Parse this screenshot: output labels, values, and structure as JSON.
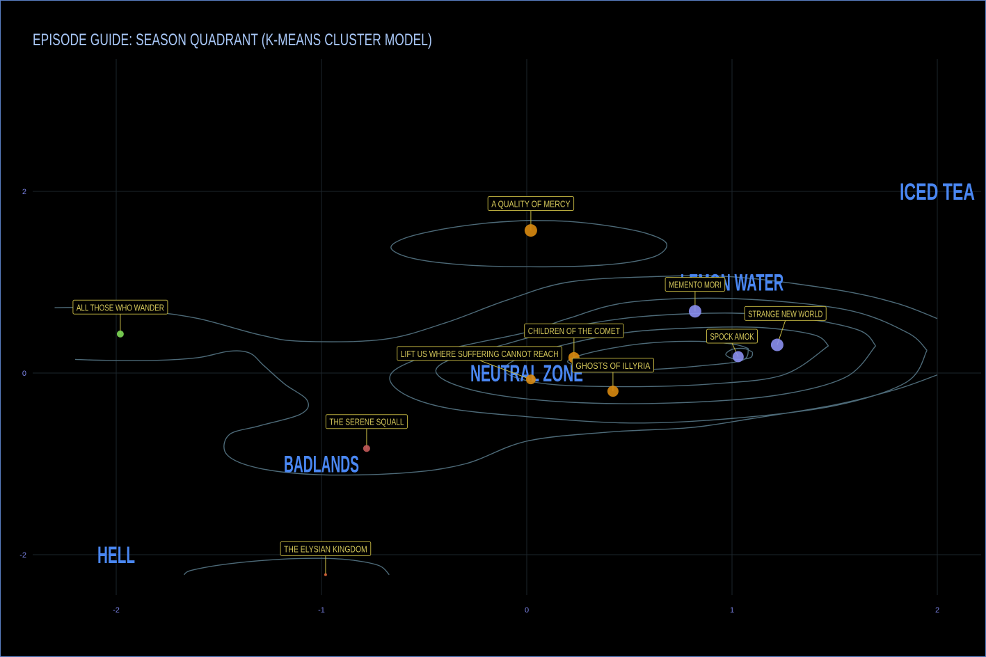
{
  "chart_data": {
    "type": "scatter",
    "title": "EPISODE GUIDE: SEASON QUADRANT (K-MEANS CLUSTER MODEL)",
    "xlabel": "",
    "ylabel": "",
    "xlim": [
      -2.3,
      2.2
    ],
    "ylim": [
      -2.6,
      3.5
    ],
    "x_ticks": [
      -2,
      -1,
      0,
      1,
      2
    ],
    "y_ticks": [
      -2,
      0,
      2
    ],
    "grid": true,
    "zones": [
      {
        "label": "ICED TEA",
        "x": 2.0,
        "y": 2.0
      },
      {
        "label": "LEMON WATER",
        "x": 1.0,
        "y": 1.0
      },
      {
        "label": "NEUTRAL ZONE",
        "x": 0.0,
        "y": 0.0
      },
      {
        "label": "BADLANDS",
        "x": -1.0,
        "y": -1.0
      },
      {
        "label": "HELL",
        "x": -2.0,
        "y": -2.0
      }
    ],
    "points": [
      {
        "label": "A QUALITY OF MERCY",
        "x": 0.02,
        "y": 1.57,
        "color": "#d98a10",
        "size": 9,
        "label_dx": 0.0,
        "label_dy": 0.25
      },
      {
        "label": "ALL THOSE WHO WANDER",
        "x": -1.98,
        "y": 0.43,
        "color": "#7ed957",
        "size": 5,
        "label_dx": 0.0,
        "label_dy": 0.25
      },
      {
        "label": "MEMENTO MORI",
        "x": 0.82,
        "y": 0.68,
        "color": "#8b8ff0",
        "size": 9,
        "label_dx": 0.0,
        "label_dy": 0.25
      },
      {
        "label": "STRANGE NEW WORLD",
        "x": 1.22,
        "y": 0.31,
        "color": "#8b8ff0",
        "size": 9,
        "label_dx": 0.04,
        "label_dy": 0.3
      },
      {
        "label": "SPOCK AMOK",
        "x": 1.03,
        "y": 0.18,
        "color": "#8b8ff0",
        "size": 8,
        "label_dx": -0.03,
        "label_dy": 0.18
      },
      {
        "label": "CHILDREN OF THE COMET",
        "x": 0.23,
        "y": 0.17,
        "color": "#d98a10",
        "size": 8,
        "label_dx": 0.0,
        "label_dy": 0.25
      },
      {
        "label": "LIFT US WHERE SUFFERING CANNOT REACH",
        "x": 0.02,
        "y": -0.07,
        "color": "#d98a10",
        "size": 7,
        "label_dx": -0.25,
        "label_dy": 0.24
      },
      {
        "label": "GHOSTS OF ILLYRIA",
        "x": 0.42,
        "y": -0.2,
        "color": "#d98a10",
        "size": 8,
        "label_dx": 0.0,
        "label_dy": 0.24
      },
      {
        "label": "THE SERENE SQUALL",
        "x": -0.78,
        "y": -0.83,
        "color": "#c45a5a",
        "size": 5,
        "label_dx": 0.0,
        "label_dy": 0.25
      },
      {
        "label": "THE ELYSIAN KINGDOM",
        "x": -0.98,
        "y": -2.22,
        "color": "#d9643a",
        "size": 2,
        "label_dx": 0.0,
        "label_dy": 0.24
      }
    ],
    "contours": [
      [
        [
          0.0,
          1.68
        ],
        [
          0.2,
          1.67
        ],
        [
          0.4,
          1.62
        ],
        [
          0.58,
          1.54
        ],
        [
          0.68,
          1.43
        ],
        [
          0.64,
          1.3
        ],
        [
          0.5,
          1.22
        ],
        [
          0.3,
          1.18
        ],
        [
          0.0,
          1.17
        ],
        [
          -0.3,
          1.19
        ],
        [
          -0.55,
          1.26
        ],
        [
          -0.66,
          1.37
        ],
        [
          -0.6,
          1.48
        ],
        [
          -0.42,
          1.58
        ],
        [
          -0.2,
          1.65
        ],
        [
          0.0,
          1.68
        ]
      ],
      [
        [
          -0.67,
          -2.22
        ],
        [
          -0.72,
          -2.12
        ],
        [
          -0.85,
          -2.06
        ],
        [
          -1.0,
          -2.04
        ],
        [
          -1.2,
          -2.05
        ],
        [
          -1.45,
          -2.1
        ],
        [
          -1.63,
          -2.17
        ],
        [
          -1.67,
          -2.22
        ]
      ],
      [
        [
          2.0,
          0.6
        ],
        [
          1.8,
          0.77
        ],
        [
          1.5,
          0.92
        ],
        [
          1.0,
          1.06
        ],
        [
          0.6,
          1.06
        ],
        [
          0.2,
          1.0
        ],
        [
          -0.1,
          0.8
        ],
        [
          -0.4,
          0.55
        ],
        [
          -0.7,
          0.37
        ],
        [
          -1.1,
          0.35
        ],
        [
          -1.3,
          0.42
        ],
        [
          -1.6,
          0.6
        ],
        [
          -1.85,
          0.68
        ],
        [
          -2.1,
          0.72
        ],
        [
          -2.3,
          0.72
        ]
      ],
      [
        [
          -2.2,
          0.15
        ],
        [
          -2.05,
          0.14
        ],
        [
          -1.8,
          0.14
        ],
        [
          -1.6,
          0.17
        ],
        [
          -1.45,
          0.24
        ],
        [
          -1.35,
          0.22
        ],
        [
          -1.28,
          0.08
        ],
        [
          -1.18,
          -0.12
        ],
        [
          -1.07,
          -0.3
        ],
        [
          -1.1,
          -0.45
        ],
        [
          -1.3,
          -0.58
        ],
        [
          -1.45,
          -0.68
        ],
        [
          -1.46,
          -0.9
        ],
        [
          -1.3,
          -1.05
        ],
        [
          -1.0,
          -1.12
        ],
        [
          -0.6,
          -1.1
        ],
        [
          -0.3,
          -1.0
        ],
        [
          0.0,
          -0.75
        ],
        [
          0.4,
          -0.65
        ],
        [
          0.8,
          -0.6
        ],
        [
          1.1,
          -0.5
        ],
        [
          1.5,
          -0.35
        ],
        [
          1.8,
          -0.18
        ],
        [
          2.0,
          -0.02
        ]
      ],
      [
        [
          1.95,
          0.25
        ],
        [
          1.85,
          0.45
        ],
        [
          1.55,
          0.7
        ],
        [
          1.0,
          0.82
        ],
        [
          0.5,
          0.78
        ],
        [
          0.2,
          0.6
        ],
        [
          0.0,
          0.45
        ],
        [
          -0.4,
          0.25
        ],
        [
          -0.65,
          0.02
        ],
        [
          -0.62,
          -0.2
        ],
        [
          -0.4,
          -0.38
        ],
        [
          0.0,
          -0.48
        ],
        [
          0.5,
          -0.55
        ],
        [
          1.0,
          -0.5
        ],
        [
          1.5,
          -0.36
        ],
        [
          1.85,
          -0.1
        ],
        [
          1.95,
          0.25
        ]
      ],
      [
        [
          1.7,
          0.3
        ],
        [
          1.62,
          0.47
        ],
        [
          1.35,
          0.6
        ],
        [
          1.0,
          0.66
        ],
        [
          0.55,
          0.62
        ],
        [
          0.2,
          0.5
        ],
        [
          -0.1,
          0.32
        ],
        [
          -0.4,
          0.12
        ],
        [
          -0.42,
          -0.05
        ],
        [
          -0.2,
          -0.22
        ],
        [
          0.2,
          -0.32
        ],
        [
          0.7,
          -0.33
        ],
        [
          1.2,
          -0.25
        ],
        [
          1.55,
          -0.05
        ],
        [
          1.7,
          0.3
        ]
      ],
      [
        [
          1.47,
          0.3
        ],
        [
          1.4,
          0.42
        ],
        [
          1.15,
          0.5
        ],
        [
          0.85,
          0.5
        ],
        [
          0.5,
          0.45
        ],
        [
          0.2,
          0.32
        ],
        [
          -0.05,
          0.15
        ],
        [
          -0.1,
          0.0
        ],
        [
          0.1,
          -0.12
        ],
        [
          0.5,
          -0.15
        ],
        [
          0.9,
          -0.12
        ],
        [
          1.25,
          -0.02
        ],
        [
          1.47,
          0.3
        ]
      ],
      [
        [
          1.08,
          0.27
        ],
        [
          1.0,
          0.32
        ],
        [
          0.8,
          0.35
        ],
        [
          0.55,
          0.32
        ],
        [
          0.3,
          0.22
        ],
        [
          0.2,
          0.12
        ],
        [
          0.35,
          0.05
        ],
        [
          0.6,
          0.04
        ],
        [
          0.85,
          0.08
        ],
        [
          1.05,
          0.14
        ],
        [
          1.08,
          0.27
        ]
      ],
      [
        [
          1.1,
          0.23
        ],
        [
          1.06,
          0.27
        ],
        [
          1.0,
          0.26
        ],
        [
          0.97,
          0.2
        ],
        [
          1.02,
          0.15
        ],
        [
          1.09,
          0.17
        ],
        [
          1.1,
          0.23
        ]
      ]
    ]
  }
}
